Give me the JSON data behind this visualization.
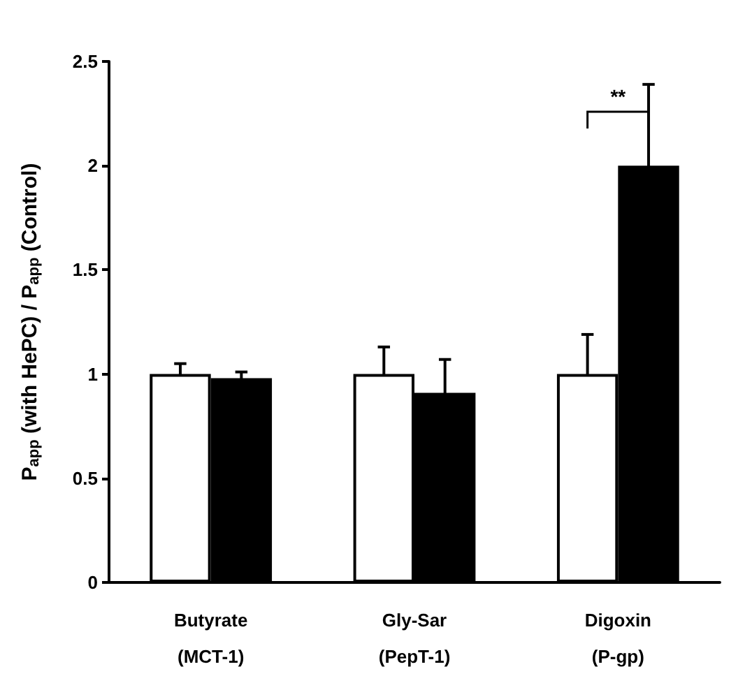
{
  "chart_data": {
    "type": "bar",
    "ylabel": "P$_{app}$ (with HePC) / P$_{app}$ (Control)",
    "categories": [
      "Butyrate\n(MCT-1)",
      "Gly-Sar\n(PepT-1)",
      "Digoxin\n(P-gp)"
    ],
    "series": [
      {
        "color": "#ffffff",
        "values": [
          1.0,
          1.0,
          1.0
        ],
        "errors": [
          0.05,
          0.13,
          0.19
        ]
      },
      {
        "color": "#000000",
        "values": [
          0.98,
          0.91,
          2.0
        ],
        "errors": [
          0.03,
          0.16,
          0.39
        ]
      }
    ],
    "ylim": [
      0,
      2.5
    ],
    "yticks": [
      0,
      0.5,
      1,
      1.5,
      2,
      2.5
    ],
    "grid": false,
    "annotations": [
      "**"
    ]
  }
}
